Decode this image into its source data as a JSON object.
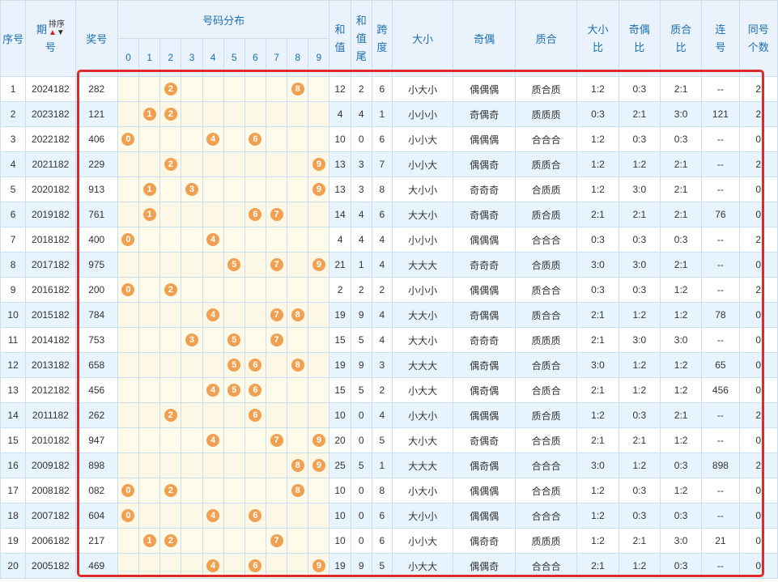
{
  "header": {
    "seq": "序号",
    "period_a": "期",
    "period_b": "号",
    "sort_label": "排序",
    "sort_up": "▲",
    "sort_down": "▼",
    "number": "奖号",
    "distribution": "号码分布",
    "digits": [
      "0",
      "1",
      "2",
      "3",
      "4",
      "5",
      "6",
      "7",
      "8",
      "9"
    ],
    "sum_a": "和",
    "sum_b": "值",
    "tail_a": "和",
    "tail_b": "值",
    "tail_c": "尾",
    "span_a": "跨",
    "span_b": "度",
    "size": "大小",
    "oddeven": "奇偶",
    "primecomp": "质合",
    "size_ratio_a": "大小",
    "size_ratio_b": "比",
    "oe_ratio_a": "奇偶",
    "oe_ratio_b": "比",
    "pc_ratio_a": "质合",
    "pc_ratio_b": "比",
    "consec_a": "连",
    "consec_b": "号",
    "same_a": "同号",
    "same_b": "个数"
  },
  "rows": [
    {
      "seq": "1",
      "period": "2024182",
      "number": "282",
      "balls": [
        2,
        8
      ],
      "sum": "12",
      "tail": "2",
      "span": "6",
      "size": "小大小",
      "oe": "偶偶偶",
      "pc": "质合质",
      "sr": "1:2",
      "oer": "0:3",
      "pcr": "2:1",
      "consec": "--",
      "same": "2"
    },
    {
      "seq": "2",
      "period": "2023182",
      "number": "121",
      "balls": [
        1,
        2
      ],
      "sum": "4",
      "tail": "4",
      "span": "1",
      "size": "小小小",
      "oe": "奇偶奇",
      "pc": "质质质",
      "sr": "0:3",
      "oer": "2:1",
      "pcr": "3:0",
      "consec": "121",
      "same": "2"
    },
    {
      "seq": "3",
      "period": "2022182",
      "number": "406",
      "balls": [
        0,
        4,
        6
      ],
      "sum": "10",
      "tail": "0",
      "span": "6",
      "size": "小小大",
      "oe": "偶偶偶",
      "pc": "合合合",
      "sr": "1:2",
      "oer": "0:3",
      "pcr": "0:3",
      "consec": "--",
      "same": "0"
    },
    {
      "seq": "4",
      "period": "2021182",
      "number": "229",
      "balls": [
        2,
        9
      ],
      "sum": "13",
      "tail": "3",
      "span": "7",
      "size": "小小大",
      "oe": "偶偶奇",
      "pc": "质质合",
      "sr": "1:2",
      "oer": "1:2",
      "pcr": "2:1",
      "consec": "--",
      "same": "2"
    },
    {
      "seq": "5",
      "period": "2020182",
      "number": "913",
      "balls": [
        1,
        3,
        9
      ],
      "sum": "13",
      "tail": "3",
      "span": "8",
      "size": "大小小",
      "oe": "奇奇奇",
      "pc": "合质质",
      "sr": "1:2",
      "oer": "3:0",
      "pcr": "2:1",
      "consec": "--",
      "same": "0"
    },
    {
      "seq": "6",
      "period": "2019182",
      "number": "761",
      "balls": [
        1,
        6,
        7
      ],
      "sum": "14",
      "tail": "4",
      "span": "6",
      "size": "大大小",
      "oe": "奇偶奇",
      "pc": "质合质",
      "sr": "2:1",
      "oer": "2:1",
      "pcr": "2:1",
      "consec": "76",
      "same": "0"
    },
    {
      "seq": "7",
      "period": "2018182",
      "number": "400",
      "balls": [
        0,
        4
      ],
      "sum": "4",
      "tail": "4",
      "span": "4",
      "size": "小小小",
      "oe": "偶偶偶",
      "pc": "合合合",
      "sr": "0:3",
      "oer": "0:3",
      "pcr": "0:3",
      "consec": "--",
      "same": "2"
    },
    {
      "seq": "8",
      "period": "2017182",
      "number": "975",
      "balls": [
        5,
        7,
        9
      ],
      "sum": "21",
      "tail": "1",
      "span": "4",
      "size": "大大大",
      "oe": "奇奇奇",
      "pc": "合质质",
      "sr": "3:0",
      "oer": "3:0",
      "pcr": "2:1",
      "consec": "--",
      "same": "0"
    },
    {
      "seq": "9",
      "period": "2016182",
      "number": "200",
      "balls": [
        0,
        2
      ],
      "sum": "2",
      "tail": "2",
      "span": "2",
      "size": "小小小",
      "oe": "偶偶偶",
      "pc": "质合合",
      "sr": "0:3",
      "oer": "0:3",
      "pcr": "1:2",
      "consec": "--",
      "same": "2"
    },
    {
      "seq": "10",
      "period": "2015182",
      "number": "784",
      "balls": [
        4,
        7,
        8
      ],
      "sum": "19",
      "tail": "9",
      "span": "4",
      "size": "大大小",
      "oe": "奇偶偶",
      "pc": "质合合",
      "sr": "2:1",
      "oer": "1:2",
      "pcr": "1:2",
      "consec": "78",
      "same": "0"
    },
    {
      "seq": "11",
      "period": "2014182",
      "number": "753",
      "balls": [
        3,
        5,
        7
      ],
      "sum": "15",
      "tail": "5",
      "span": "4",
      "size": "大大小",
      "oe": "奇奇奇",
      "pc": "质质质",
      "sr": "2:1",
      "oer": "3:0",
      "pcr": "3:0",
      "consec": "--",
      "same": "0"
    },
    {
      "seq": "12",
      "period": "2013182",
      "number": "658",
      "balls": [
        5,
        6,
        8
      ],
      "sum": "19",
      "tail": "9",
      "span": "3",
      "size": "大大大",
      "oe": "偶奇偶",
      "pc": "合质合",
      "sr": "3:0",
      "oer": "1:2",
      "pcr": "1:2",
      "consec": "65",
      "same": "0"
    },
    {
      "seq": "13",
      "period": "2012182",
      "number": "456",
      "balls": [
        4,
        5,
        6
      ],
      "sum": "15",
      "tail": "5",
      "span": "2",
      "size": "小大大",
      "oe": "偶奇偶",
      "pc": "合质合",
      "sr": "2:1",
      "oer": "1:2",
      "pcr": "1:2",
      "consec": "456",
      "same": "0"
    },
    {
      "seq": "14",
      "period": "2011182",
      "number": "262",
      "balls": [
        2,
        6
      ],
      "sum": "10",
      "tail": "0",
      "span": "4",
      "size": "小大小",
      "oe": "偶偶偶",
      "pc": "质合质",
      "sr": "1:2",
      "oer": "0:3",
      "pcr": "2:1",
      "consec": "--",
      "same": "2"
    },
    {
      "seq": "15",
      "period": "2010182",
      "number": "947",
      "balls": [
        4,
        7,
        9
      ],
      "sum": "20",
      "tail": "0",
      "span": "5",
      "size": "大小大",
      "oe": "奇偶奇",
      "pc": "合合质",
      "sr": "2:1",
      "oer": "2:1",
      "pcr": "1:2",
      "consec": "--",
      "same": "0"
    },
    {
      "seq": "16",
      "period": "2009182",
      "number": "898",
      "balls": [
        8,
        9
      ],
      "sum": "25",
      "tail": "5",
      "span": "1",
      "size": "大大大",
      "oe": "偶奇偶",
      "pc": "合合合",
      "sr": "3:0",
      "oer": "1:2",
      "pcr": "0:3",
      "consec": "898",
      "same": "2"
    },
    {
      "seq": "17",
      "period": "2008182",
      "number": "082",
      "balls": [
        0,
        2,
        8
      ],
      "sum": "10",
      "tail": "0",
      "span": "8",
      "size": "小大小",
      "oe": "偶偶偶",
      "pc": "合合质",
      "sr": "1:2",
      "oer": "0:3",
      "pcr": "1:2",
      "consec": "--",
      "same": "0"
    },
    {
      "seq": "18",
      "period": "2007182",
      "number": "604",
      "balls": [
        0,
        4,
        6
      ],
      "sum": "10",
      "tail": "0",
      "span": "6",
      "size": "大小小",
      "oe": "偶偶偶",
      "pc": "合合合",
      "sr": "1:2",
      "oer": "0:3",
      "pcr": "0:3",
      "consec": "--",
      "same": "0"
    },
    {
      "seq": "19",
      "period": "2006182",
      "number": "217",
      "balls": [
        1,
        2,
        7
      ],
      "sum": "10",
      "tail": "0",
      "span": "6",
      "size": "小小大",
      "oe": "偶奇奇",
      "pc": "质质质",
      "sr": "1:2",
      "oer": "2:1",
      "pcr": "3:0",
      "consec": "21",
      "same": "0"
    },
    {
      "seq": "20",
      "period": "2005182",
      "number": "469",
      "balls": [
        4,
        6,
        9
      ],
      "sum": "19",
      "tail": "9",
      "span": "5",
      "size": "小大大",
      "oe": "偶偶奇",
      "pc": "合合合",
      "sr": "2:1",
      "oer": "1:2",
      "pcr": "0:3",
      "consec": "--",
      "same": "0"
    }
  ],
  "colors": {
    "header_text": "#1a6fb5",
    "header_bg": "#eaf3fb",
    "row_alt_bg": "#e8f4fd",
    "ball": "#f0a050",
    "highlight_border": "#e02a2a"
  }
}
